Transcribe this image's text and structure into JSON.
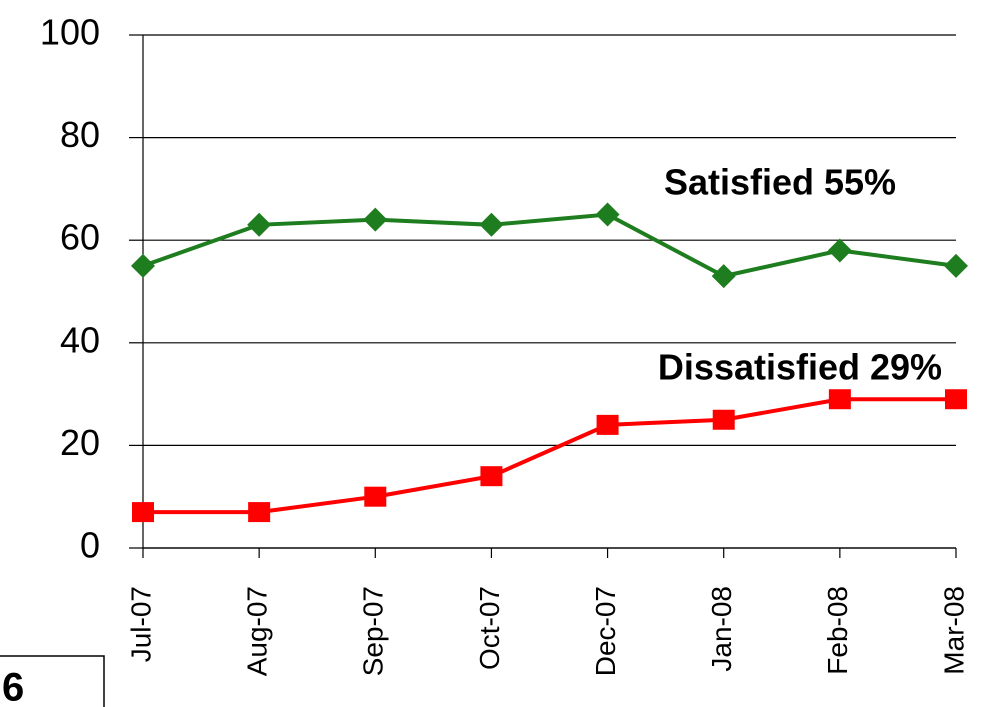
{
  "chart_data": {
    "type": "line",
    "categories": [
      "Jul-07",
      "Aug-07",
      "Sep-07",
      "Oct-07",
      "Dec-07",
      "Jan-08",
      "Feb-08",
      "Mar-08"
    ],
    "series": [
      {
        "label": "Satisfied 55%",
        "color": "#1e7d1e",
        "label_color": "#1f9a1f",
        "marker": "diamond",
        "values": [
          55,
          63,
          64,
          63,
          65,
          53,
          58,
          55
        ]
      },
      {
        "label": "Dissatisfied 29%",
        "color": "#ff0000",
        "label_color": "#ff3300",
        "marker": "square",
        "values": [
          7,
          7,
          10,
          14,
          24,
          25,
          29,
          29
        ]
      }
    ],
    "ylim": [
      0,
      100
    ],
    "yticks": [
      0,
      20,
      40,
      60,
      80,
      100
    ],
    "grid": true
  },
  "corner_label": "6"
}
